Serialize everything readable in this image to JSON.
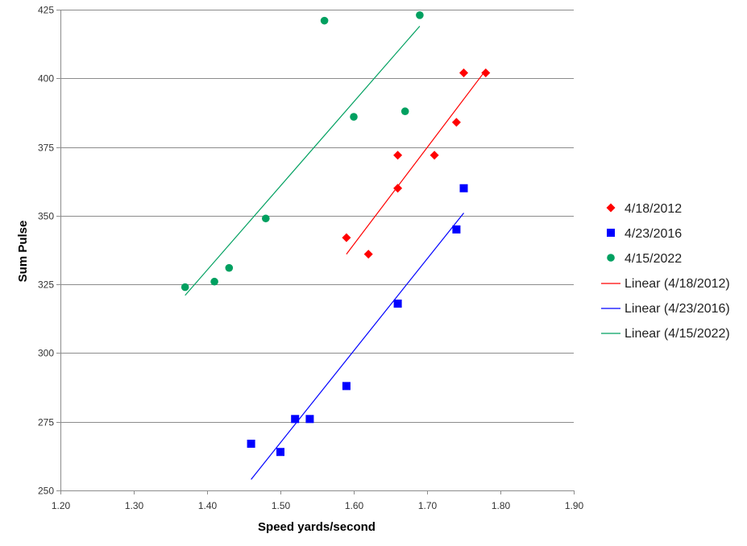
{
  "chart_data": {
    "type": "scatter",
    "title": "",
    "xlabel": "Speed yards/second",
    "ylabel": "Sum Pulse",
    "xlim": [
      1.2,
      1.9
    ],
    "ylim": [
      250,
      425
    ],
    "x_ticks": [
      "1.20",
      "1.30",
      "1.40",
      "1.50",
      "1.60",
      "1.70",
      "1.80",
      "1.90"
    ],
    "y_ticks": [
      "250",
      "275",
      "300",
      "325",
      "350",
      "375",
      "400",
      "425"
    ],
    "grid": "horizontal",
    "legend_position": "right",
    "series": [
      {
        "name": "4/18/2012",
        "marker": "diamond",
        "color": "#ff0000",
        "points": [
          {
            "x": 1.59,
            "y": 342
          },
          {
            "x": 1.62,
            "y": 336
          },
          {
            "x": 1.66,
            "y": 372
          },
          {
            "x": 1.66,
            "y": 360
          },
          {
            "x": 1.71,
            "y": 372
          },
          {
            "x": 1.74,
            "y": 384
          },
          {
            "x": 1.75,
            "y": 402
          },
          {
            "x": 1.78,
            "y": 402
          }
        ]
      },
      {
        "name": "4/23/2016",
        "marker": "square",
        "color": "#0000ff",
        "points": [
          {
            "x": 1.46,
            "y": 267
          },
          {
            "x": 1.5,
            "y": 264
          },
          {
            "x": 1.52,
            "y": 276
          },
          {
            "x": 1.54,
            "y": 276
          },
          {
            "x": 1.59,
            "y": 288
          },
          {
            "x": 1.66,
            "y": 318
          },
          {
            "x": 1.74,
            "y": 345
          },
          {
            "x": 1.75,
            "y": 360
          }
        ]
      },
      {
        "name": "4/15/2022",
        "marker": "circle",
        "color": "#00a060",
        "points": [
          {
            "x": 1.37,
            "y": 324
          },
          {
            "x": 1.41,
            "y": 326
          },
          {
            "x": 1.43,
            "y": 331
          },
          {
            "x": 1.48,
            "y": 349
          },
          {
            "x": 1.56,
            "y": 421
          },
          {
            "x": 1.6,
            "y": 386
          },
          {
            "x": 1.67,
            "y": 388
          },
          {
            "x": 1.69,
            "y": 423
          }
        ]
      }
    ],
    "trendlines": [
      {
        "name": "Linear (4/18/2012)",
        "color": "#ff0000",
        "from": {
          "x": 1.59,
          "y": 336
        },
        "to": {
          "x": 1.78,
          "y": 403
        }
      },
      {
        "name": "Linear (4/23/2016)",
        "color": "#0000ff",
        "from": {
          "x": 1.46,
          "y": 254
        },
        "to": {
          "x": 1.75,
          "y": 351
        }
      },
      {
        "name": "Linear (4/15/2022)",
        "color": "#00a060",
        "from": {
          "x": 1.37,
          "y": 321
        },
        "to": {
          "x": 1.69,
          "y": 419
        }
      }
    ]
  }
}
